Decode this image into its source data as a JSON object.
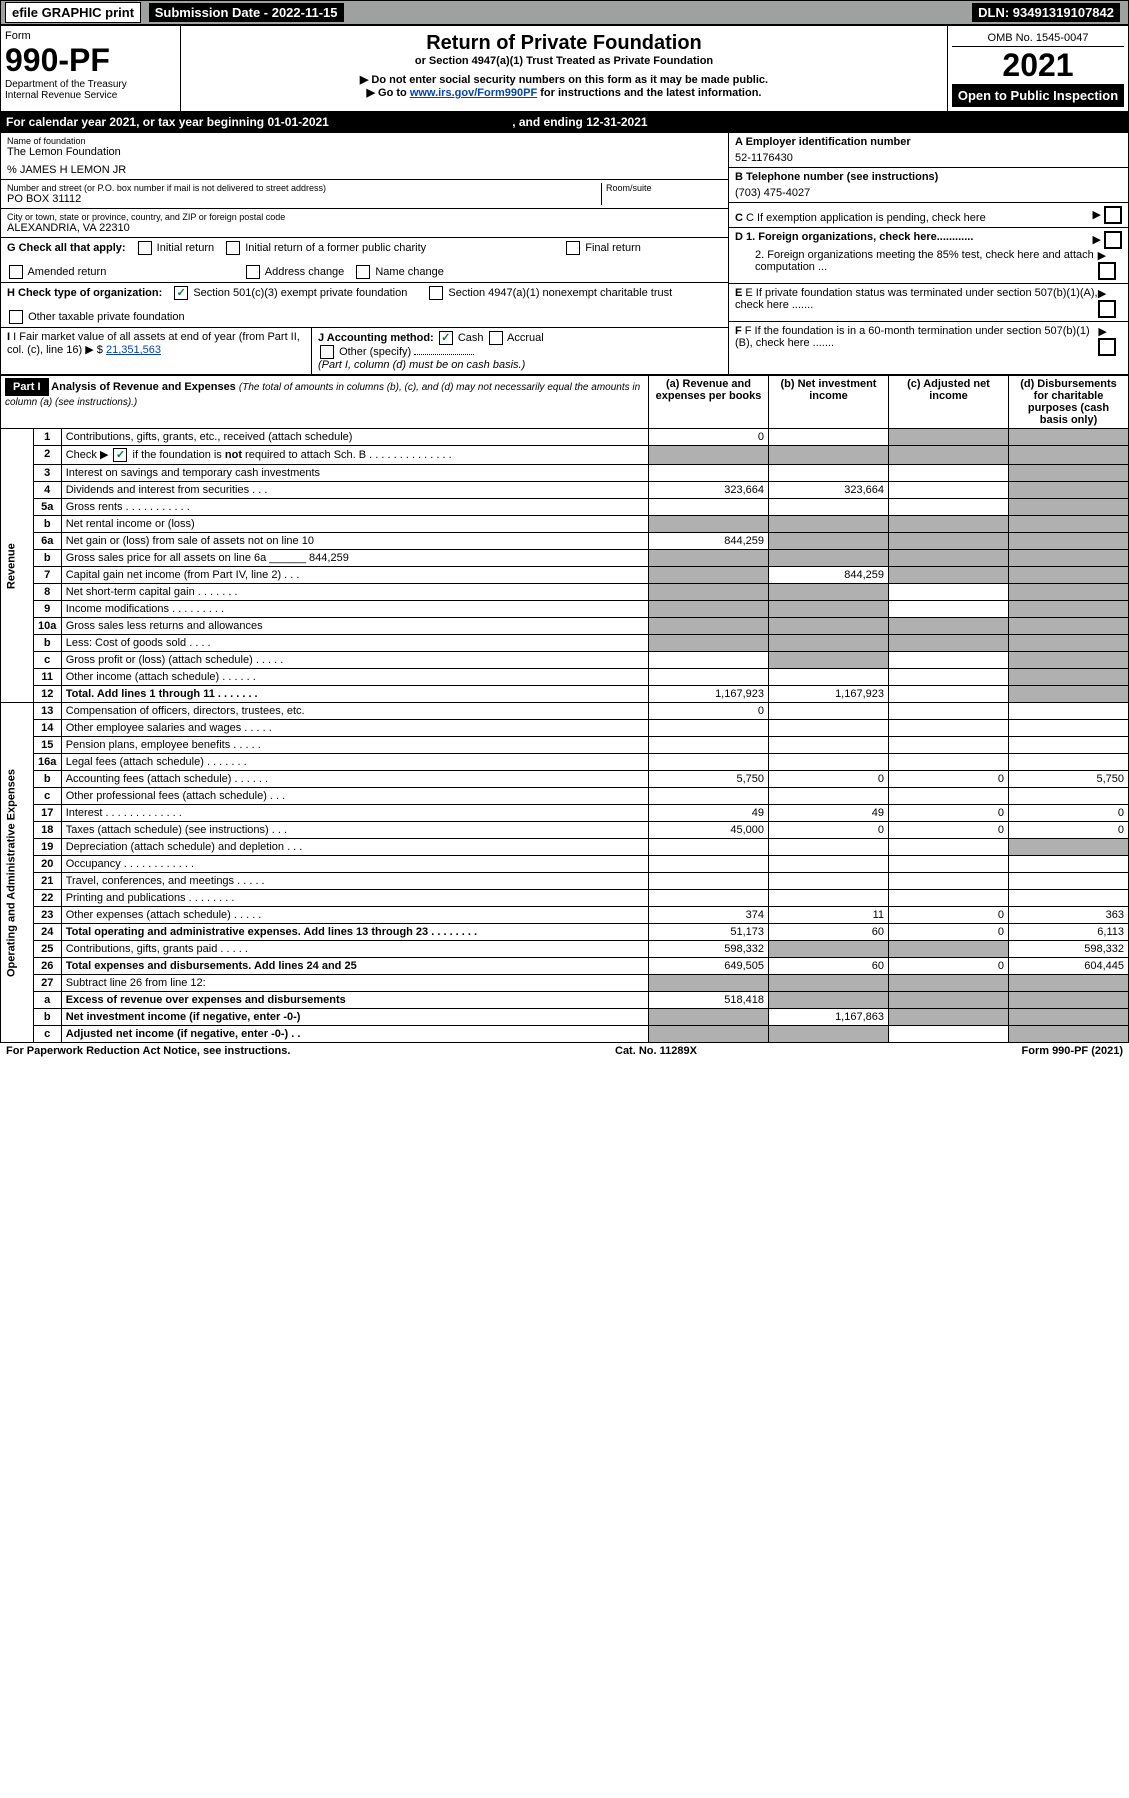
{
  "topbar": {
    "efile": "efile GRAPHIC print",
    "submission_label": "Submission Date - 2022-11-15",
    "dln": "DLN: 93491319107842"
  },
  "header": {
    "form_label": "Form",
    "form_number": "990-PF",
    "dept": "Department of the Treasury",
    "irs": "Internal Revenue Service",
    "title": "Return of Private Foundation",
    "subtitle": "or Section 4947(a)(1) Trust Treated as Private Foundation",
    "note1": "▶ Do not enter social security numbers on this form as it may be made public.",
    "note2_pre": "▶ Go to ",
    "note2_link": "www.irs.gov/Form990PF",
    "note2_post": " for instructions and the latest information.",
    "omb": "OMB No. 1545-0047",
    "year": "2021",
    "open": "Open to Public Inspection"
  },
  "calendar": {
    "text_pre": "For calendar year 2021, or tax year beginning ",
    "begin": "01-01-2021",
    "mid": ", and ending ",
    "end": "12-31-2021"
  },
  "entity": {
    "name_label": "Name of foundation",
    "name": "The Lemon Foundation",
    "co": "% JAMES H LEMON JR",
    "addr_label": "Number and street (or P.O. box number if mail is not delivered to street address)",
    "addr": "PO BOX 31112",
    "room_label": "Room/suite",
    "room": "",
    "city_label": "City or town, state or province, country, and ZIP or foreign postal code",
    "city": "ALEXANDRIA, VA  22310",
    "a_label": "A Employer identification number",
    "a_val": "52-1176430",
    "b_label": "B Telephone number (see instructions)",
    "b_val": "(703) 475-4027",
    "c_label": "C If exemption application is pending, check here",
    "d1_label": "D 1. Foreign organizations, check here............",
    "d2_label": "2. Foreign organizations meeting the 85% test, check here and attach computation ...",
    "e_label": "E  If private foundation status was terminated under section 507(b)(1)(A), check here .......",
    "f_label": "F  If the foundation is in a 60-month termination under section 507(b)(1)(B), check here ......."
  },
  "g": {
    "label": "G Check all that apply:",
    "opts": [
      "Initial return",
      "Initial return of a former public charity",
      "Final return",
      "Amended return",
      "Address change",
      "Name change"
    ]
  },
  "h": {
    "label": "H Check type of organization:",
    "opt1": "Section 501(c)(3) exempt private foundation",
    "opt2": "Section 4947(a)(1) nonexempt charitable trust",
    "opt3": "Other taxable private foundation"
  },
  "i": {
    "label": "I Fair market value of all assets at end of year (from Part II, col. (c), line 16)",
    "val": "21,351,563"
  },
  "j": {
    "label": "J Accounting method:",
    "cash": "Cash",
    "accrual": "Accrual",
    "other": "Other (specify)",
    "note": "(Part I, column (d) must be on cash basis.)"
  },
  "part1": {
    "label": "Part I",
    "title": "Analysis of Revenue and Expenses",
    "title_note": "(The total of amounts in columns (b), (c), and (d) may not necessarily equal the amounts in column (a) (see instructions).)",
    "col_a": "(a) Revenue and expenses per books",
    "col_b": "(b) Net investment income",
    "col_c": "(c) Adjusted net income",
    "col_d": "(d) Disbursements for charitable purposes (cash basis only)"
  },
  "sides": {
    "revenue": "Revenue",
    "expenses": "Operating and Administrative Expenses"
  },
  "rows": [
    {
      "n": "1",
      "desc": "Contributions, gifts, grants, etc., received (attach schedule)",
      "a": "0",
      "b": "",
      "c": "shaded",
      "d": "shaded"
    },
    {
      "n": "2",
      "desc": "Check ▶ ☑ if the foundation is not required to attach Sch. B",
      "a": "shaded",
      "b": "shaded",
      "c": "shaded",
      "d": "shaded",
      "checked": true
    },
    {
      "n": "3",
      "desc": "Interest on savings and temporary cash investments",
      "a": "",
      "b": "",
      "c": "",
      "d": "shaded"
    },
    {
      "n": "4",
      "desc": "Dividends and interest from securities  .  .  .",
      "a": "323,664",
      "b": "323,664",
      "c": "",
      "d": "shaded"
    },
    {
      "n": "5a",
      "desc": "Gross rents  .  .  .  .  .  .  .  .  .  .  .",
      "a": "",
      "b": "",
      "c": "",
      "d": "shaded"
    },
    {
      "n": "b",
      "desc": "Net rental income or (loss)",
      "a": "shaded",
      "b": "shaded",
      "c": "shaded",
      "d": "shaded"
    },
    {
      "n": "6a",
      "desc": "Net gain or (loss) from sale of assets not on line 10",
      "a": "844,259",
      "b": "shaded",
      "c": "shaded",
      "d": "shaded"
    },
    {
      "n": "b",
      "desc": "Gross sales price for all assets on line 6a ______ 844,259",
      "a": "shaded",
      "b": "shaded",
      "c": "shaded",
      "d": "shaded"
    },
    {
      "n": "7",
      "desc": "Capital gain net income (from Part IV, line 2)  .  .  .",
      "a": "shaded",
      "b": "844,259",
      "c": "shaded",
      "d": "shaded"
    },
    {
      "n": "8",
      "desc": "Net short-term capital gain  .  .  .  .  .  .  .",
      "a": "shaded",
      "b": "shaded",
      "c": "",
      "d": "shaded"
    },
    {
      "n": "9",
      "desc": "Income modifications  .  .  .  .  .  .  .  .  .",
      "a": "shaded",
      "b": "shaded",
      "c": "",
      "d": "shaded"
    },
    {
      "n": "10a",
      "desc": "Gross sales less returns and allowances",
      "a": "shaded",
      "b": "shaded",
      "c": "shaded",
      "d": "shaded"
    },
    {
      "n": "b",
      "desc": "Less: Cost of goods sold  .  .  .  .",
      "a": "shaded",
      "b": "shaded",
      "c": "shaded",
      "d": "shaded"
    },
    {
      "n": "c",
      "desc": "Gross profit or (loss) (attach schedule)  .  .  .  .  .",
      "a": "",
      "b": "shaded",
      "c": "",
      "d": "shaded"
    },
    {
      "n": "11",
      "desc": "Other income (attach schedule)  .  .  .  .  .  .",
      "a": "",
      "b": "",
      "c": "",
      "d": "shaded"
    },
    {
      "n": "12",
      "desc": "Total. Add lines 1 through 11  .  .  .  .  .  .  .",
      "a": "1,167,923",
      "b": "1,167,923",
      "c": "",
      "d": "shaded",
      "bold": true
    },
    {
      "n": "13",
      "desc": "Compensation of officers, directors, trustees, etc.",
      "a": "0",
      "b": "",
      "c": "",
      "d": ""
    },
    {
      "n": "14",
      "desc": "Other employee salaries and wages  .  .  .  .  .",
      "a": "",
      "b": "",
      "c": "",
      "d": ""
    },
    {
      "n": "15",
      "desc": "Pension plans, employee benefits  .  .  .  .  .",
      "a": "",
      "b": "",
      "c": "",
      "d": ""
    },
    {
      "n": "16a",
      "desc": "Legal fees (attach schedule)  .  .  .  .  .  .  .",
      "a": "",
      "b": "",
      "c": "",
      "d": ""
    },
    {
      "n": "b",
      "desc": "Accounting fees (attach schedule)  .  .  .  .  .  .",
      "a": "5,750",
      "b": "0",
      "c": "0",
      "d": "5,750"
    },
    {
      "n": "c",
      "desc": "Other professional fees (attach schedule)  .  .  .",
      "a": "",
      "b": "",
      "c": "",
      "d": ""
    },
    {
      "n": "17",
      "desc": "Interest  .  .  .  .  .  .  .  .  .  .  .  .  .",
      "a": "49",
      "b": "49",
      "c": "0",
      "d": "0"
    },
    {
      "n": "18",
      "desc": "Taxes (attach schedule) (see instructions)  .  .  .",
      "a": "45,000",
      "b": "0",
      "c": "0",
      "d": "0"
    },
    {
      "n": "19",
      "desc": "Depreciation (attach schedule) and depletion  .  .  .",
      "a": "",
      "b": "",
      "c": "",
      "d": "shaded"
    },
    {
      "n": "20",
      "desc": "Occupancy  .  .  .  .  .  .  .  .  .  .  .  .",
      "a": "",
      "b": "",
      "c": "",
      "d": ""
    },
    {
      "n": "21",
      "desc": "Travel, conferences, and meetings  .  .  .  .  .",
      "a": "",
      "b": "",
      "c": "",
      "d": ""
    },
    {
      "n": "22",
      "desc": "Printing and publications  .  .  .  .  .  .  .  .",
      "a": "",
      "b": "",
      "c": "",
      "d": ""
    },
    {
      "n": "23",
      "desc": "Other expenses (attach schedule)  .  .  .  .  .",
      "a": "374",
      "b": "11",
      "c": "0",
      "d": "363"
    },
    {
      "n": "24",
      "desc": "Total operating and administrative expenses. Add lines 13 through 23  .  .  .  .  .  .  .  .",
      "a": "51,173",
      "b": "60",
      "c": "0",
      "d": "6,113",
      "bold": true
    },
    {
      "n": "25",
      "desc": "Contributions, gifts, grants paid  .  .  .  .  .",
      "a": "598,332",
      "b": "shaded",
      "c": "shaded",
      "d": "598,332"
    },
    {
      "n": "26",
      "desc": "Total expenses and disbursements. Add lines 24 and 25",
      "a": "649,505",
      "b": "60",
      "c": "0",
      "d": "604,445",
      "bold": true
    },
    {
      "n": "27",
      "desc": "Subtract line 26 from line 12:",
      "a": "shaded",
      "b": "shaded",
      "c": "shaded",
      "d": "shaded"
    },
    {
      "n": "a",
      "desc": "Excess of revenue over expenses and disbursements",
      "a": "518,418",
      "b": "shaded",
      "c": "shaded",
      "d": "shaded",
      "bold": true
    },
    {
      "n": "b",
      "desc": "Net investment income (if negative, enter -0-)",
      "a": "shaded",
      "b": "1,167,863",
      "c": "shaded",
      "d": "shaded",
      "bold": true
    },
    {
      "n": "c",
      "desc": "Adjusted net income (if negative, enter -0-)  .  .",
      "a": "shaded",
      "b": "shaded",
      "c": "",
      "d": "shaded",
      "bold": true
    }
  ],
  "footer": {
    "left": "For Paperwork Reduction Act Notice, see instructions.",
    "mid": "Cat. No. 11289X",
    "right": "Form 990-PF (2021)"
  }
}
